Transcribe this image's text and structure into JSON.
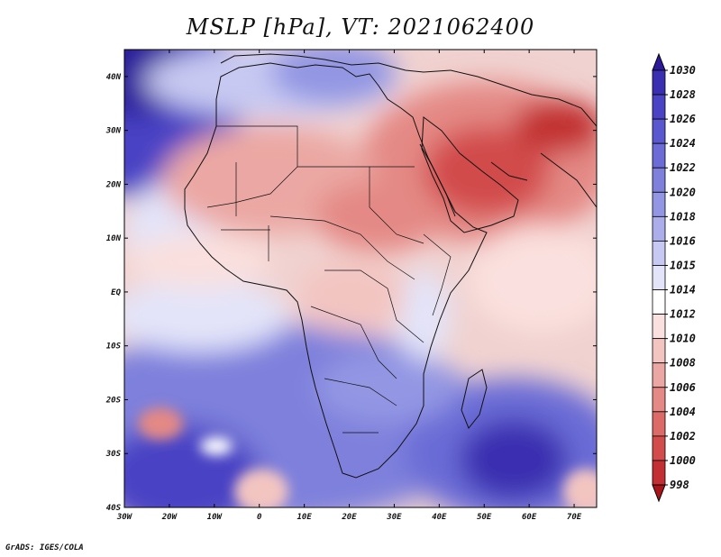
{
  "title": "MSLP [hPa], VT: 2021062400",
  "credit": "GrADS: IGES/COLA",
  "map": {
    "variable": "Mean sea level pressure",
    "units": "hPa",
    "lon_range": [
      -30,
      75
    ],
    "lat_range": [
      -40,
      45
    ],
    "lon_ticks": [
      {
        "value": -30,
        "label": "30W"
      },
      {
        "value": -20,
        "label": "20W"
      },
      {
        "value": -10,
        "label": "10W"
      },
      {
        "value": 0,
        "label": "0"
      },
      {
        "value": 10,
        "label": "10E"
      },
      {
        "value": 20,
        "label": "20E"
      },
      {
        "value": 30,
        "label": "30E"
      },
      {
        "value": 40,
        "label": "40E"
      },
      {
        "value": 50,
        "label": "50E"
      },
      {
        "value": 60,
        "label": "60E"
      },
      {
        "value": 70,
        "label": "70E"
      }
    ],
    "lat_ticks": [
      {
        "value": 40,
        "label": "40N"
      },
      {
        "value": 30,
        "label": "30N"
      },
      {
        "value": 20,
        "label": "20N"
      },
      {
        "value": 10,
        "label": "10N"
      },
      {
        "value": 0,
        "label": "EQ"
      },
      {
        "value": -10,
        "label": "10S"
      },
      {
        "value": -20,
        "label": "20S"
      },
      {
        "value": -30,
        "label": "30S"
      },
      {
        "value": -40,
        "label": "40S"
      }
    ]
  },
  "colorbar": {
    "labels": [
      "1030",
      "1028",
      "1026",
      "1024",
      "1022",
      "1020",
      "1018",
      "1016",
      "1015",
      "1014",
      "1012",
      "1010",
      "1008",
      "1006",
      "1004",
      "1002",
      "1000",
      "998"
    ],
    "colors": [
      "#2c1a9a",
      "#3a2fb0",
      "#4a43c4",
      "#5a58cf",
      "#6b6cd6",
      "#7e80dc",
      "#9396e3",
      "#abaeea",
      "#c7c9f2",
      "#e3e4f9",
      "#ffffff",
      "#fae0de",
      "#f3c5c1",
      "#eba7a3",
      "#e48985",
      "#dc6a67",
      "#d24c4b",
      "#c23033",
      "#a8161c"
    ]
  }
}
